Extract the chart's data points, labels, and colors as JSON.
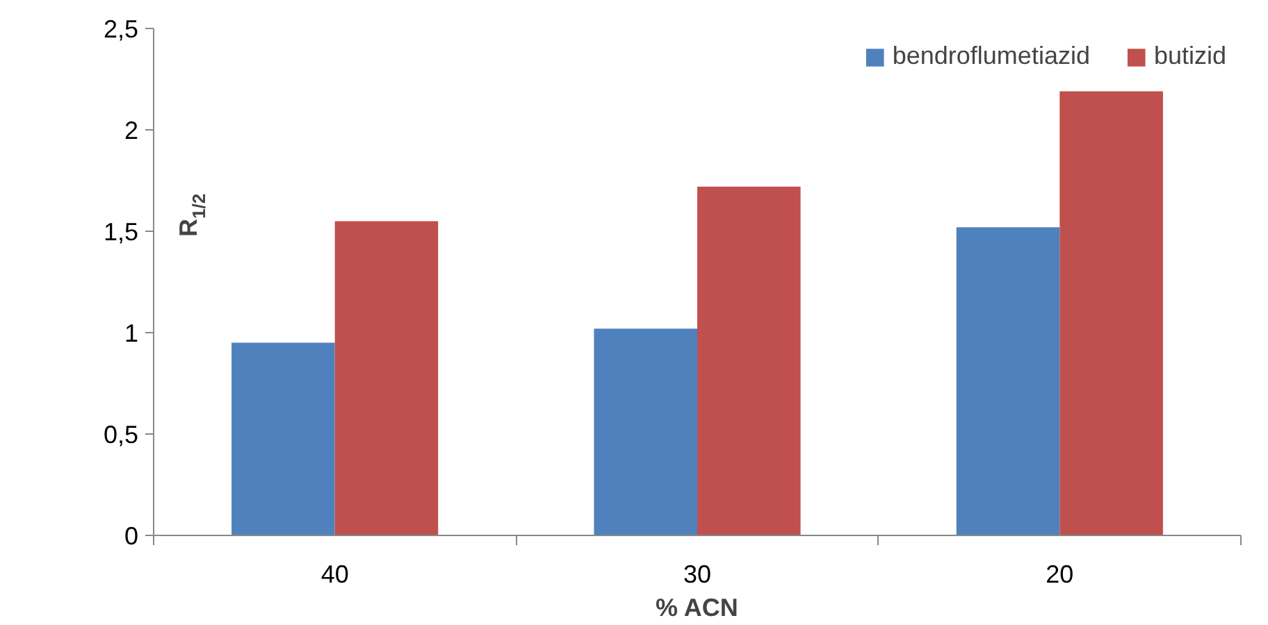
{
  "chart_data": {
    "type": "bar",
    "xlabel": "% ACN",
    "ylabel": "R$_{1/2}$",
    "categories": [
      "40",
      "30",
      "20"
    ],
    "series": [
      {
        "name": "bendroflumetiazid",
        "color": "#4f81bd",
        "values": [
          0.95,
          1.02,
          1.52
        ]
      },
      {
        "name": "butizid",
        "color": "#c0504d",
        "values": [
          1.55,
          1.72,
          2.19
        ]
      }
    ],
    "ylim": [
      0,
      2.5
    ],
    "yticks": [
      0,
      {
        "value": 0.5,
        "label": "0,5"
      },
      1,
      {
        "value": 1.5,
        "label": "1,5"
      },
      2,
      {
        "value": 2.5,
        "label": "2,5"
      }
    ],
    "grid": false,
    "legend": "top right"
  }
}
